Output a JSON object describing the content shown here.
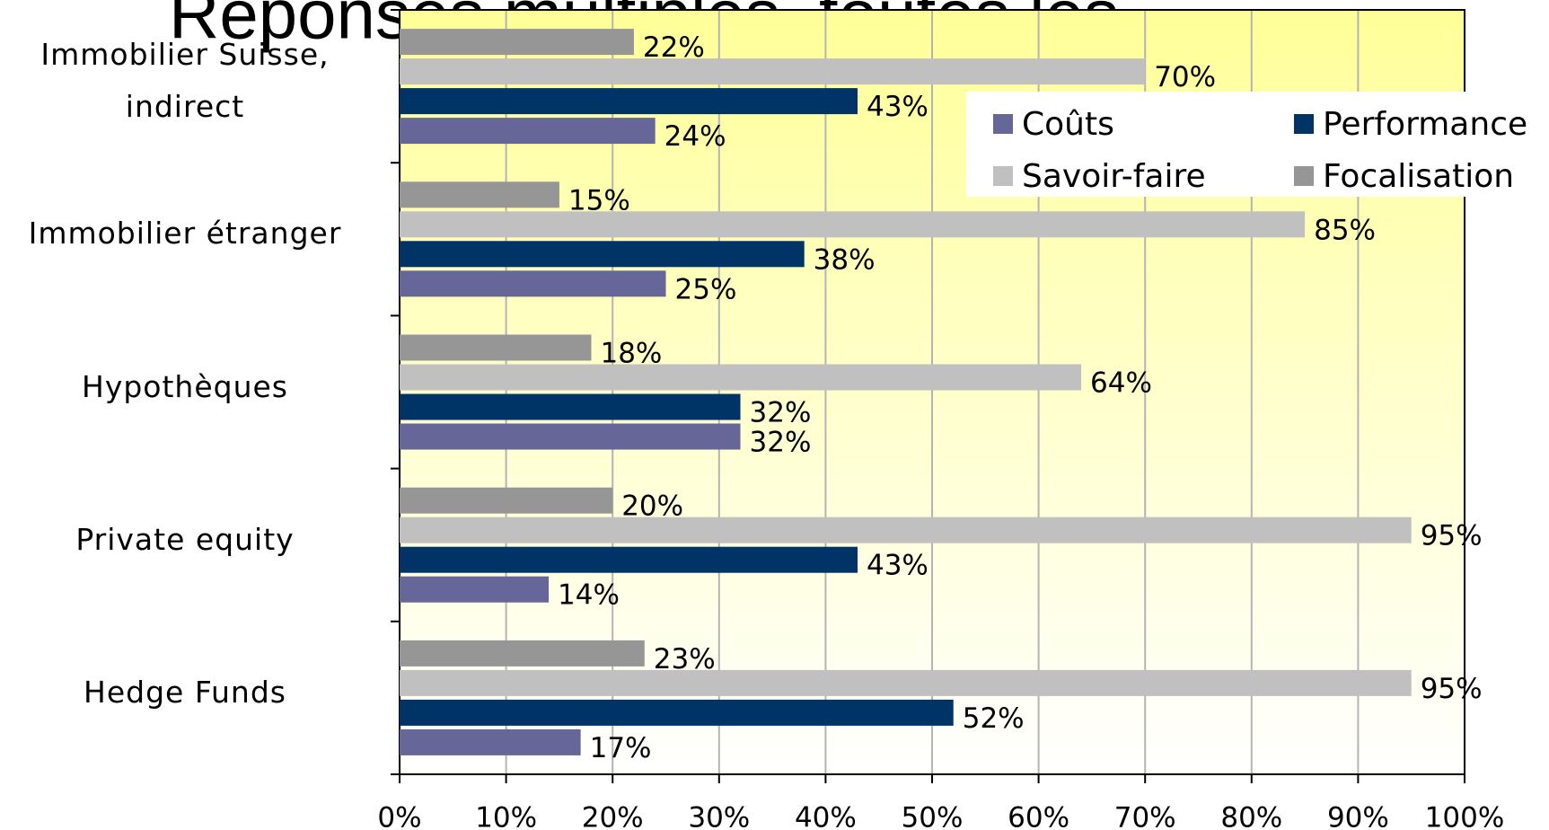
{
  "chart_data": {
    "type": "bar",
    "orientation": "horizontal",
    "title": "Réponses multiples, toutes les",
    "categories": [
      "Immobilier Suisse, indirect",
      "Immobilier étranger",
      "Hypothèques",
      "Private equity",
      "Hedge Funds"
    ],
    "series": [
      {
        "name": "Coûts",
        "color": "#666699",
        "values": [
          24,
          25,
          32,
          14,
          17
        ],
        "value_labels": [
          "24%",
          "25%",
          "32%",
          "14%",
          "17%"
        ]
      },
      {
        "name": "Performance",
        "color": "#003366",
        "values": [
          43,
          38,
          32,
          43,
          52
        ],
        "value_labels": [
          "43%",
          "38%",
          "32%",
          "43%",
          "52%"
        ]
      },
      {
        "name": "Savoir-faire",
        "color": "#c0c0c0",
        "values": [
          70,
          85,
          64,
          95,
          95
        ],
        "value_labels": [
          "70%",
          "85%",
          "64%",
          "95%",
          "95%"
        ]
      },
      {
        "name": "Focalisation",
        "color": "#969696",
        "values": [
          22,
          15,
          18,
          20,
          23
        ],
        "value_labels": [
          "22%",
          "15%",
          "18%",
          "20%",
          "23%"
        ]
      }
    ],
    "xlim": [
      0,
      100
    ],
    "xticks": [
      {
        "value": 0,
        "label": "0%"
      },
      {
        "value": 10,
        "label": "10%"
      },
      {
        "value": 20,
        "label": "20%"
      },
      {
        "value": 30,
        "label": "30%"
      },
      {
        "value": 40,
        "label": "40%"
      },
      {
        "value": 50,
        "label": "50%"
      },
      {
        "value": 60,
        "label": "60%"
      },
      {
        "value": 70,
        "label": "70%"
      },
      {
        "value": 80,
        "label": "80%"
      },
      {
        "value": 90,
        "label": "90%"
      },
      {
        "value": 100,
        "label": "100%"
      }
    ],
    "grid": true,
    "legend": "upper right"
  }
}
